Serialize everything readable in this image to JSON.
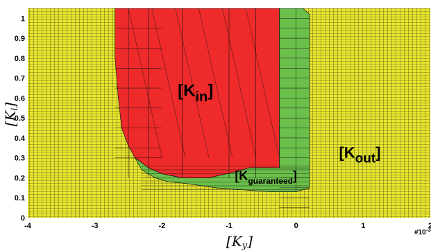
{
  "chart_data": {
    "type": "heatmap",
    "title": "",
    "xlabel": "[K_y]",
    "ylabel": "[K_i]",
    "x_scale_label": "#10^-3",
    "xlim": [
      -4,
      2
    ],
    "ylim": [
      0,
      1.05
    ],
    "x_ticks": [
      -4,
      -3,
      -2,
      -1,
      0,
      1,
      2
    ],
    "y_ticks": [
      0,
      0.1,
      0.2,
      0.3,
      0.4,
      0.5,
      0.6,
      0.7,
      0.8,
      0.9,
      1
    ],
    "grid": true,
    "colors": {
      "K_out": "#e8e62e",
      "K_in": "#ee2a2a",
      "K_guaranteed": "#6bbf4b",
      "grid_line": "#1a1a1a"
    },
    "regions": [
      {
        "name": "K_out",
        "label": "[Kout]",
        "label_main": "K",
        "label_sub": "out",
        "label_pos": [
          0.95,
          0.3
        ]
      },
      {
        "name": "K_in",
        "label": "[Kin]",
        "label_main": "K",
        "label_sub": "in",
        "label_pos": [
          -1.5,
          0.61
        ],
        "boundary": [
          [
            -2.7,
            1.05
          ],
          [
            -2.45,
            1.05
          ],
          [
            -0.25,
            1.05
          ],
          [
            -0.25,
            0.25
          ],
          [
            -0.7,
            0.25
          ],
          [
            -0.9,
            0.23
          ],
          [
            -1.3,
            0.2
          ],
          [
            -1.7,
            0.2
          ],
          [
            -2.0,
            0.22
          ],
          [
            -2.2,
            0.25
          ],
          [
            -2.4,
            0.3
          ],
          [
            -2.5,
            0.36
          ],
          [
            -2.6,
            0.45
          ],
          [
            -2.65,
            0.6
          ],
          [
            -2.7,
            0.8
          ],
          [
            -2.7,
            1.05
          ]
        ]
      },
      {
        "name": "K_guaranteed",
        "label": "[Kguaranteed]",
        "label_main": "K",
        "label_sub": "guaranteed",
        "label_pos": [
          -0.45,
          0.19
        ],
        "boundary": [
          [
            -0.25,
            1.05
          ],
          [
            0.1,
            1.05
          ],
          [
            0.2,
            1.02
          ],
          [
            0.2,
            0.15
          ],
          [
            0.0,
            0.13
          ],
          [
            -0.4,
            0.13
          ],
          [
            -0.8,
            0.14
          ],
          [
            -1.2,
            0.15
          ],
          [
            -1.6,
            0.17
          ],
          [
            -1.9,
            0.18
          ],
          [
            -2.1,
            0.2
          ],
          [
            -2.3,
            0.24
          ],
          [
            -2.4,
            0.3
          ],
          [
            -2.2,
            0.25
          ],
          [
            -2.0,
            0.22
          ],
          [
            -1.7,
            0.2
          ],
          [
            -1.3,
            0.2
          ],
          [
            -0.9,
            0.23
          ],
          [
            -0.7,
            0.25
          ],
          [
            -0.25,
            0.25
          ]
        ]
      }
    ]
  }
}
